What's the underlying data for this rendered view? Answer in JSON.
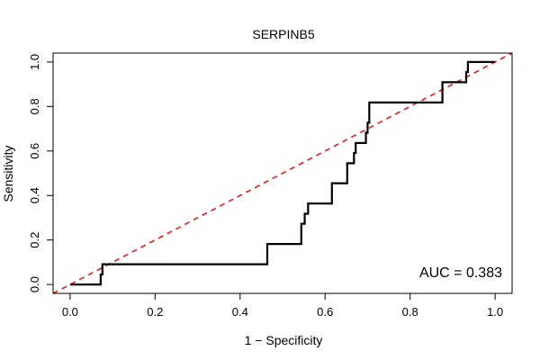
{
  "chart_data": {
    "type": "line",
    "title": "SERPINB5",
    "xlabel": "1 − Specificity",
    "ylabel": "Sensitivity",
    "xlim": [
      -0.04,
      1.04
    ],
    "ylim": [
      -0.04,
      1.04
    ],
    "x_ticks": [
      0.0,
      0.2,
      0.4,
      0.6,
      0.8,
      1.0
    ],
    "x_tick_labels": [
      "0.0",
      "0.2",
      "0.4",
      "0.6",
      "0.8",
      "1.0"
    ],
    "y_ticks": [
      0.0,
      0.2,
      0.4,
      0.6,
      0.8,
      1.0
    ],
    "y_tick_labels": [
      "0.0",
      "0.2",
      "0.4",
      "0.6",
      "0.8",
      "1.0"
    ],
    "grid": false,
    "annotation": "AUC = 0.383",
    "series": [
      {
        "name": "ROC curve",
        "color": "#000000",
        "style": "solid",
        "x": [
          0.0,
          0.072,
          0.072,
          0.076,
          0.076,
          0.464,
          0.464,
          0.544,
          0.544,
          0.552,
          0.552,
          0.56,
          0.56,
          0.616,
          0.616,
          0.652,
          0.652,
          0.668,
          0.668,
          0.672,
          0.672,
          0.696,
          0.696,
          0.7,
          0.7,
          0.704,
          0.704,
          0.876,
          0.876,
          0.932,
          0.932,
          0.936,
          0.936,
          1.0
        ],
        "y": [
          0.0,
          0.0,
          0.045,
          0.045,
          0.091,
          0.091,
          0.182,
          0.182,
          0.273,
          0.273,
          0.318,
          0.318,
          0.364,
          0.364,
          0.455,
          0.455,
          0.545,
          0.545,
          0.591,
          0.591,
          0.636,
          0.636,
          0.682,
          0.682,
          0.727,
          0.727,
          0.818,
          0.818,
          0.909,
          0.909,
          0.955,
          0.955,
          1.0,
          1.0
        ]
      },
      {
        "name": "Reference (chance) line",
        "color": "#e41a1c",
        "style": "dashed",
        "x": [
          -0.04,
          1.04
        ],
        "y": [
          -0.04,
          1.04
        ]
      }
    ]
  }
}
